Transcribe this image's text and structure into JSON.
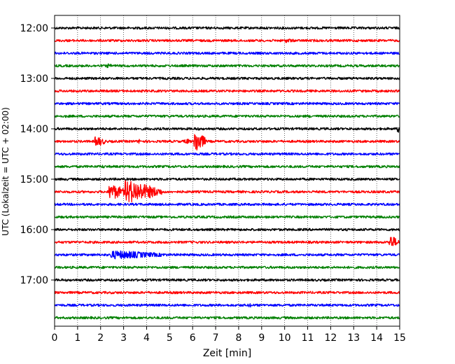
{
  "chart_data": {
    "type": "line",
    "title": "",
    "xlabel": "Zeit  [min]",
    "ylabel": "UTC (Lokalzeit = UTC + 02:00)",
    "xlim": [
      0,
      15
    ],
    "x_ticks": [
      0,
      1,
      2,
      3,
      4,
      5,
      6,
      7,
      8,
      9,
      10,
      11,
      12,
      13,
      14,
      15
    ],
    "y_tick_labels": [
      "12:00",
      "13:00",
      "14:00",
      "15:00",
      "16:00",
      "17:00"
    ],
    "trace_minutes": 15,
    "grid_x": true,
    "grid_style": "dotted",
    "trace_colors": [
      "#000000",
      "#ff0000",
      "#0000ff",
      "#008000"
    ],
    "traces": [
      {
        "start": "12:00",
        "color": "#000000",
        "events": [
          {
            "t": 4.1,
            "amp": 0.15,
            "dur": 0.1
          },
          {
            "t": 14.5,
            "amp": 0.12,
            "dur": 0.1
          }
        ]
      },
      {
        "start": "12:15",
        "color": "#ff0000",
        "events": [
          {
            "t": 10.1,
            "amp": 0.3,
            "dur": 0.5
          },
          {
            "t": 11.3,
            "amp": 0.2,
            "dur": 0.1
          }
        ]
      },
      {
        "start": "12:30",
        "color": "#0000ff",
        "events": []
      },
      {
        "start": "12:45",
        "color": "#008000",
        "events": [
          {
            "t": 2.3,
            "amp": 0.3,
            "dur": 0.3
          },
          {
            "t": 9.3,
            "amp": 0.15,
            "dur": 0.1
          }
        ]
      },
      {
        "start": "13:00",
        "color": "#000000",
        "events": []
      },
      {
        "start": "13:15",
        "color": "#ff0000",
        "events": [
          {
            "t": 7.0,
            "amp": 0.15,
            "dur": 0.1
          }
        ]
      },
      {
        "start": "13:30",
        "color": "#0000ff",
        "events": [
          {
            "t": 4.7,
            "amp": 0.12,
            "dur": 0.1
          }
        ]
      },
      {
        "start": "13:45",
        "color": "#008000",
        "events": [
          {
            "t": 0.5,
            "amp": 0.2,
            "dur": 0.1
          },
          {
            "t": 11.1,
            "amp": 0.2,
            "dur": 0.3
          }
        ]
      },
      {
        "start": "14:00",
        "color": "#000000",
        "events": [
          {
            "t": 6.2,
            "amp": 0.3,
            "dur": 0.1
          },
          {
            "t": 14.95,
            "amp": 0.5,
            "dur": 0.05
          }
        ]
      },
      {
        "start": "14:15",
        "color": "#ff0000",
        "events": [
          {
            "t": 1.8,
            "amp": 0.7,
            "dur": 0.5
          },
          {
            "t": 3.7,
            "amp": 0.4,
            "dur": 0.1
          },
          {
            "t": 5.7,
            "amp": 0.4,
            "dur": 0.3
          },
          {
            "t": 6.1,
            "amp": 1.6,
            "dur": 0.5
          },
          {
            "t": 9.1,
            "amp": 0.25,
            "dur": 0.1
          }
        ]
      },
      {
        "start": "14:30",
        "color": "#0000ff",
        "events": []
      },
      {
        "start": "14:45",
        "color": "#008000",
        "events": [
          {
            "t": 2.1,
            "amp": 0.25,
            "dur": 0.2
          }
        ]
      },
      {
        "start": "15:00",
        "color": "#000000",
        "events": []
      },
      {
        "start": "15:15",
        "color": "#ff0000",
        "events": [
          {
            "t": 2.4,
            "amp": 1.1,
            "dur": 0.8
          },
          {
            "t": 3.1,
            "amp": 1.6,
            "dur": 1.6
          }
        ]
      },
      {
        "start": "15:30",
        "color": "#0000ff",
        "events": []
      },
      {
        "start": "15:45",
        "color": "#008000",
        "events": [
          {
            "t": 14.0,
            "amp": 0.2,
            "dur": 0.2
          }
        ]
      },
      {
        "start": "16:00",
        "color": "#000000",
        "events": []
      },
      {
        "start": "16:15",
        "color": "#ff0000",
        "events": [
          {
            "t": 14.6,
            "amp": 0.9,
            "dur": 0.4
          }
        ]
      },
      {
        "start": "16:30",
        "color": "#0000ff",
        "events": [
          {
            "t": 2.5,
            "amp": 0.6,
            "dur": 2.6
          }
        ]
      },
      {
        "start": "16:45",
        "color": "#008000",
        "events": []
      },
      {
        "start": "17:00",
        "color": "#000000",
        "events": []
      },
      {
        "start": "17:15",
        "color": "#ff0000",
        "events": []
      },
      {
        "start": "17:30",
        "color": "#0000ff",
        "events": [
          {
            "t": 8.5,
            "amp": 0.35,
            "dur": 0.05
          },
          {
            "t": 10.5,
            "amp": 0.2,
            "dur": 0.05
          }
        ]
      },
      {
        "start": "17:45",
        "color": "#008000",
        "events": []
      }
    ]
  }
}
